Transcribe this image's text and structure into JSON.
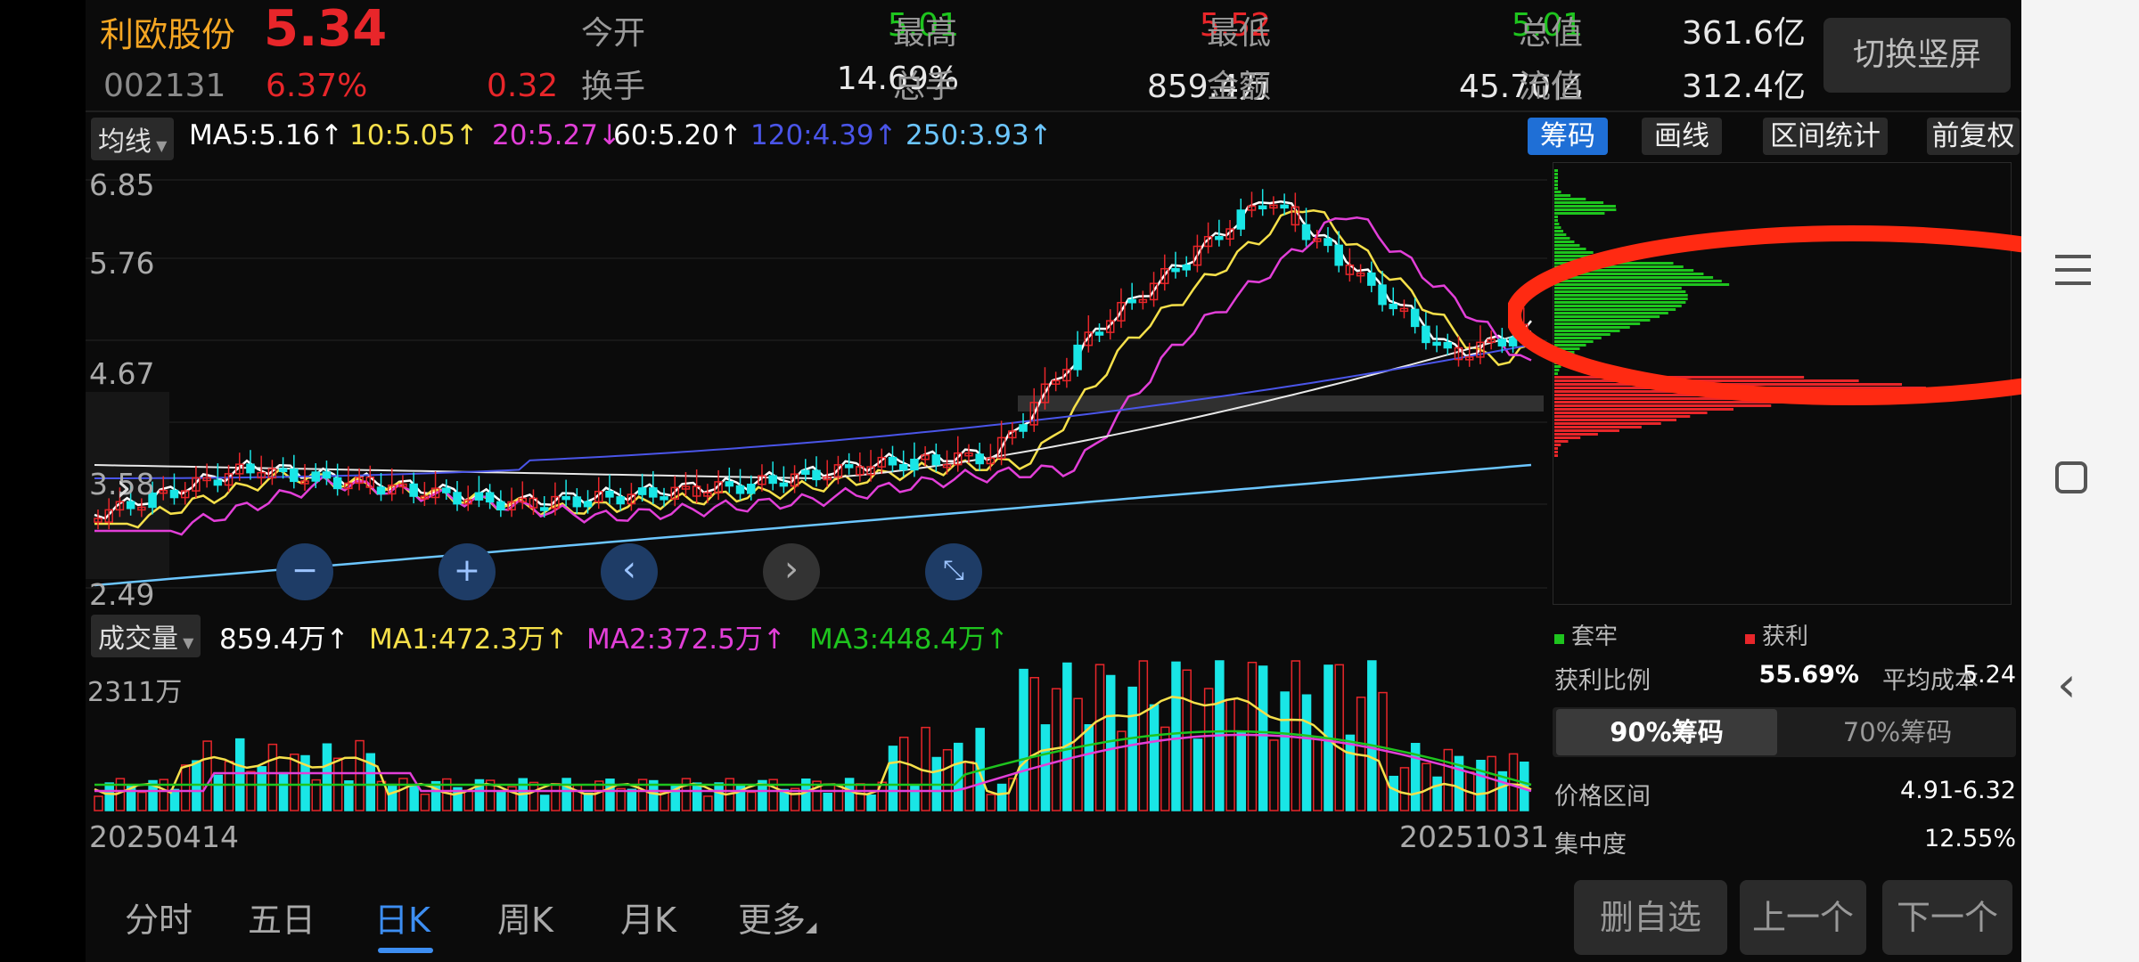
{
  "header": {
    "name": "利欧股份",
    "price": "5.34",
    "code": "002131",
    "change_pct": "6.37%",
    "change": "0.32",
    "quotes": [
      {
        "label": "今开",
        "value": "5.01",
        "color": "green"
      },
      {
        "label": "最高",
        "value": "5.52",
        "color": "red"
      },
      {
        "label": "最低",
        "value": "5.01",
        "color": "green"
      },
      {
        "label": "总值",
        "value": "361.6亿",
        "color": "white"
      },
      {
        "label": "换手",
        "value": "14.69%",
        "color": "white"
      },
      {
        "label": "总手",
        "value": "859.4万",
        "color": "white"
      },
      {
        "label": "金额",
        "value": "45.70亿",
        "color": "white"
      },
      {
        "label": "流值",
        "value": "312.4亿",
        "color": "white"
      }
    ],
    "switch_label": "切换竖屏"
  },
  "ma_bar": {
    "selector": "均线",
    "items": [
      {
        "text": "MA5:5.16↑",
        "color": "#ffffff"
      },
      {
        "text": "10:5.05↑",
        "color": "#f6e04a"
      },
      {
        "text": "20:5.27↓",
        "color": "#e23fd8"
      },
      {
        "text": "60:5.20↑",
        "color": "#ffffff"
      },
      {
        "text": "120:4.39↑",
        "color": "#4a55e8"
      },
      {
        "text": "250:3.93↑",
        "color": "#6cc6ff"
      }
    ],
    "buttons": [
      "筹码",
      "画线",
      "区间统计",
      "前复权"
    ]
  },
  "price_axis": [
    "6.85",
    "5.76",
    "4.67",
    "3.58",
    "2.49"
  ],
  "controls": [
    "zoom-out",
    "zoom-in",
    "prev",
    "next",
    "collapse"
  ],
  "volume_bar": {
    "selector": "成交量",
    "items": [
      {
        "text": "859.4万↑",
        "color": "#ffffff"
      },
      {
        "text": "MA1:472.3万↑",
        "color": "#f6e04a"
      },
      {
        "text": "MA2:372.5万↑",
        "color": "#e23fd8"
      },
      {
        "text": "MA3:448.4万↑",
        "color": "#1ec41e"
      }
    ],
    "axis_max": "2311万"
  },
  "dates": {
    "start": "20250414",
    "end": "20251031"
  },
  "chips": {
    "legend_trapped": "套牢",
    "legend_profit": "获利",
    "profit_ratio_label": "获利比例",
    "profit_ratio": "55.69%",
    "avg_cost_label": "平均成本",
    "avg_cost": "5.24",
    "tab_90": "90%筹码",
    "tab_70": "70%筹码",
    "range_label": "价格区间",
    "range": "4.91-6.32",
    "concentration_label": "集中度",
    "concentration": "12.55%"
  },
  "bottom_tabs": [
    "分时",
    "五日",
    "日K",
    "周K",
    "月K",
    "更多"
  ],
  "active_tab": "日K",
  "bottom_buttons": [
    "删自选",
    "上一个",
    "下一个"
  ]
}
